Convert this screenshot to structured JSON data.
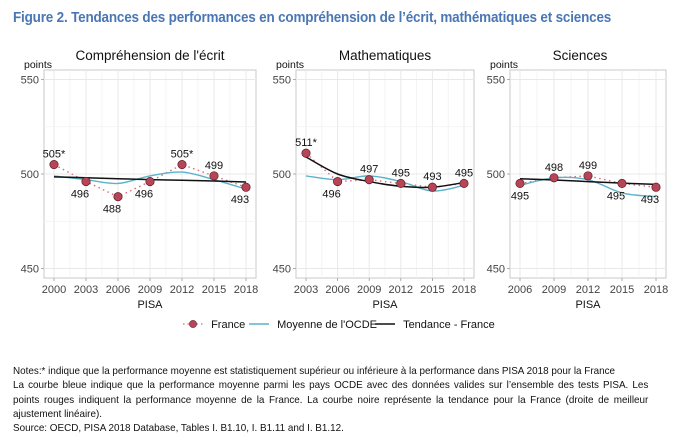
{
  "title": "Figure 2. Tendances des performances en compréhension de l’écrit, mathématiques et sciences",
  "colors": {
    "title": "#4a77b4",
    "france_point": "#b84556",
    "france_dotted": "#d96a7a",
    "oecd": "#5bb3c9",
    "trend": "#111111",
    "grid": "#e8e8e8",
    "axis": "#c8c8c8"
  },
  "chart_data": [
    {
      "type": "line",
      "title": "Compréhension de l'écrit",
      "ylabel": "points",
      "xlabel": "PISA",
      "ylim": [
        445,
        555
      ],
      "yticks": [
        450,
        500,
        550
      ],
      "categories": [
        "2000",
        "2003",
        "2006",
        "2009",
        "2012",
        "2015",
        "2018"
      ],
      "series": [
        {
          "name": "France",
          "values": [
            505,
            496,
            488,
            496,
            505,
            499,
            493
          ],
          "labels": [
            "505*",
            "496",
            "488",
            "496",
            "505*",
            "499",
            "493"
          ],
          "label_pos": [
            "above",
            "below",
            "below",
            "below",
            "above",
            "above",
            "below"
          ]
        },
        {
          "name": "Moyenne de l'OCDE",
          "values": [
            499,
            497,
            495,
            499,
            501,
            497,
            492
          ]
        },
        {
          "name": "Tendance - France",
          "values": [
            498.5,
            498,
            497.5,
            497,
            496.7,
            496.3,
            495.8
          ]
        }
      ],
      "grid": true
    },
    {
      "type": "line",
      "title": "Mathematiques",
      "ylabel": "points",
      "xlabel": "PISA",
      "ylim": [
        445,
        555
      ],
      "yticks": [
        450,
        500,
        550
      ],
      "categories": [
        "2003",
        "2006",
        "2009",
        "2012",
        "2015",
        "2018"
      ],
      "series": [
        {
          "name": "France",
          "values": [
            511,
            496,
            497,
            495,
            493,
            495
          ],
          "labels": [
            "511*",
            "496",
            "497",
            "495",
            "493",
            "495"
          ],
          "label_pos": [
            "above",
            "below",
            "above",
            "above",
            "above",
            "above"
          ]
        },
        {
          "name": "Moyenne de l'OCDE",
          "values": [
            499,
            497,
            499,
            496,
            491,
            494
          ]
        },
        {
          "name": "Tendance - France",
          "values": [
            509,
            500,
            496,
            493.5,
            493,
            495.5
          ]
        }
      ],
      "grid": true
    },
    {
      "type": "line",
      "title": "Sciences",
      "ylabel": "points",
      "xlabel": "PISA",
      "ylim": [
        445,
        555
      ],
      "yticks": [
        450,
        500,
        550
      ],
      "categories": [
        "2006",
        "2009",
        "2012",
        "2015",
        "2018"
      ],
      "series": [
        {
          "name": "France",
          "values": [
            495,
            498,
            499,
            495,
            493
          ],
          "labels": [
            "495",
            "498",
            "499",
            "495",
            "493"
          ],
          "label_pos": [
            "below",
            "above",
            "above",
            "below",
            "below"
          ]
        },
        {
          "name": "Moyenne de l'OCDE",
          "values": [
            494,
            498,
            497,
            490,
            488
          ]
        },
        {
          "name": "Tendance - France",
          "values": [
            497.5,
            496.8,
            496,
            495.2,
            494.5
          ]
        }
      ],
      "grid": true
    }
  ],
  "legend": {
    "position": "bottom",
    "items": [
      {
        "label": "France",
        "kind": "dotted-point"
      },
      {
        "label": "Moyenne de l'OCDE",
        "kind": "line-oecd"
      },
      {
        "label": "Tendance - France",
        "kind": "line-trend"
      }
    ]
  },
  "notes": {
    "line1": "Notes:* indique que la performance moyenne est statistiquement supérieur ou inférieure à la performance dans PISA 2018 pour la France",
    "line2": "La courbe bleue indique que la performance moyenne parmi les pays OCDE avec des données valides sur l’ensemble des tests PISA. Les points rouges indiquent la performance moyenne de la France. La courbe noire représente la tendance pour la France (droite de meilleur ajustement linéaire).",
    "source": "Source: OECD, PISA 2018 Database, Tables I. B1.10, I. B1.11 and I. B1.12."
  }
}
